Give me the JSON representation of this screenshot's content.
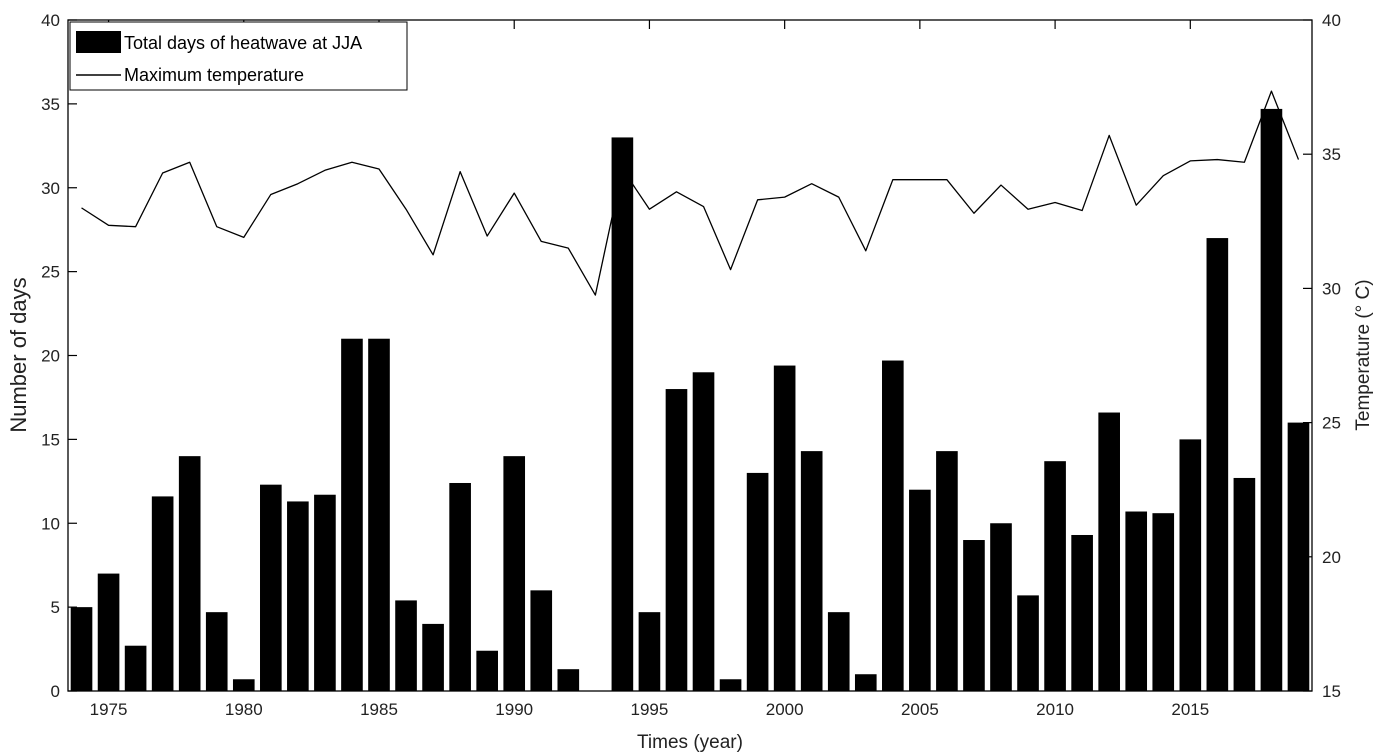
{
  "chart_data": {
    "type": "bar+line",
    "title": "",
    "xlabel": "Times (year)",
    "ylabel_left": "Number of days",
    "ylabel_right": "Temperature (° C)",
    "ylim_left": [
      0,
      40
    ],
    "ylim_right": [
      15,
      40
    ],
    "xlim": [
      1973.5,
      2019.5
    ],
    "yticks_left": [
      0,
      5,
      10,
      15,
      20,
      25,
      30,
      35,
      40
    ],
    "yticks_right": [
      15,
      20,
      25,
      30,
      35,
      40
    ],
    "xticks": [
      1975,
      1980,
      1985,
      1990,
      1995,
      2000,
      2005,
      2010,
      2015
    ],
    "grid": false,
    "legend_position": "top-left",
    "series": [
      {
        "name": "Total days of heatwave at JJA",
        "kind": "bar",
        "axis": "left",
        "color": "#000000",
        "x": [
          1974,
          1975,
          1976,
          1977,
          1978,
          1979,
          1980,
          1981,
          1982,
          1983,
          1984,
          1985,
          1986,
          1987,
          1988,
          1989,
          1990,
          1991,
          1992,
          1993,
          1994,
          1995,
          1996,
          1997,
          1998,
          1999,
          2000,
          2001,
          2002,
          2003,
          2004,
          2005,
          2006,
          2007,
          2008,
          2009,
          2010,
          2011,
          2012,
          2013,
          2014,
          2015,
          2016,
          2017,
          2018,
          2019
        ],
        "values": [
          5,
          7,
          2.7,
          11.6,
          14,
          4.7,
          0.7,
          12.3,
          11.3,
          11.7,
          21,
          21,
          5.4,
          4,
          12.4,
          2.4,
          14,
          6,
          1.3,
          0,
          33,
          4.7,
          18,
          19,
          0.7,
          13,
          19.4,
          14.3,
          4.7,
          1,
          19.7,
          12,
          14.3,
          9,
          10,
          5.7,
          13.7,
          9.3,
          16.6,
          10.7,
          10.6,
          15,
          27,
          12.7,
          34.7,
          16
        ]
      },
      {
        "name": "Maximum temperature",
        "kind": "line",
        "axis": "right",
        "color": "#000000",
        "x": [
          1974,
          1975,
          1976,
          1977,
          1978,
          1979,
          1980,
          1981,
          1982,
          1983,
          1984,
          1985,
          1986,
          1987,
          1988,
          1989,
          1990,
          1991,
          1992,
          1993,
          1994,
          1995,
          1996,
          1997,
          1998,
          1999,
          2000,
          2001,
          2002,
          2003,
          2004,
          2005,
          2006,
          2007,
          2008,
          2009,
          2010,
          2011,
          2012,
          2013,
          2014,
          2015,
          2016,
          2017,
          2018,
          2019
        ],
        "values": [
          33,
          32.35,
          32.3,
          34.3,
          34.7,
          32.3,
          31.9,
          33.5,
          33.9,
          34.4,
          34.7,
          34.45,
          32.95,
          31.25,
          34.35,
          31.95,
          33.55,
          31.75,
          31.5,
          29.75,
          34.45,
          32.95,
          33.6,
          33.05,
          30.7,
          33.3,
          33.4,
          33.9,
          33.4,
          31.4,
          34.05,
          34.05,
          34.05,
          32.8,
          33.85,
          32.95,
          33.2,
          32.9,
          35.7,
          33.1,
          34.2,
          34.75,
          34.8,
          34.7,
          37.35,
          34.8
        ]
      }
    ]
  }
}
